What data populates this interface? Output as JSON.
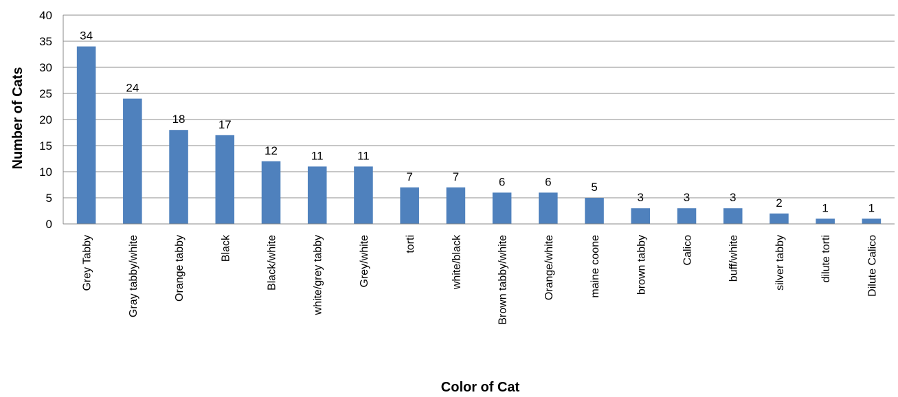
{
  "chart_data": {
    "type": "bar",
    "xlabel": "Color of Cat",
    "ylabel": "Number of Cats",
    "ylim": [
      0,
      40
    ],
    "ytick_step": 5,
    "grid": "horizontal",
    "bar_color": "#4f81bd",
    "categories": [
      "Grey Tabby",
      "Gray tabby/white",
      "Orange tabby",
      "Black",
      "Black/white",
      "white/grey tabby",
      "Grey/white",
      "torti",
      "white/black",
      "Brown tabby/white",
      "Orange/white",
      "maine coone",
      "brown tabby",
      "Calico",
      "buff/white",
      "silver tabby",
      "dilute torti",
      "Dilute Calico"
    ],
    "values": [
      34,
      24,
      18,
      17,
      12,
      11,
      11,
      7,
      7,
      6,
      6,
      5,
      3,
      3,
      3,
      2,
      1,
      1
    ]
  }
}
